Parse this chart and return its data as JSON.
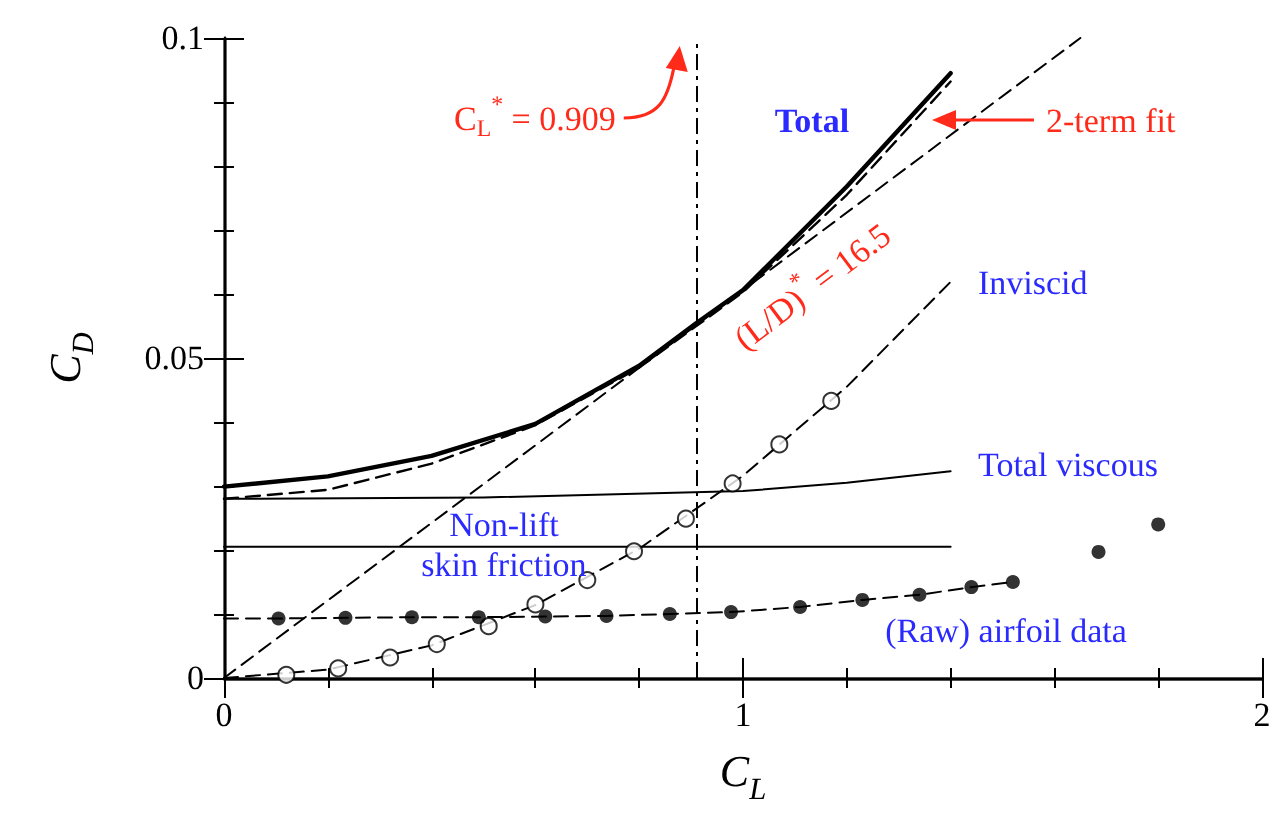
{
  "chart_data": {
    "type": "line",
    "xlabel": "C$_{L}$",
    "ylabel": "C$_{D}$",
    "xlim": [
      0,
      2
    ],
    "ylim": [
      0,
      0.1
    ],
    "xticks": [
      0,
      {
        "value": 0.2,
        "label": null
      },
      {
        "value": 0.4,
        "label": null
      },
      {
        "value": 0.6,
        "label": null
      },
      {
        "value": 0.8,
        "label": null
      },
      1,
      {
        "value": 1.2,
        "label": null
      },
      {
        "value": 1.4,
        "label": null
      },
      {
        "value": 1.6,
        "label": null
      },
      {
        "value": 1.8,
        "label": null
      },
      2
    ],
    "yticks": [
      0,
      {
        "value": 0.01,
        "label": null
      },
      {
        "value": 0.02,
        "label": null
      },
      {
        "value": 0.03,
        "label": null
      },
      {
        "value": 0.04,
        "label": null
      },
      0.05,
      {
        "value": 0.06,
        "label": null
      },
      {
        "value": 0.07,
        "label": null
      },
      {
        "value": 0.08,
        "label": null
      },
      {
        "value": 0.09,
        "label": null
      },
      0.1
    ],
    "grid": false,
    "series": [
      {
        "name": "Total",
        "color": "#000000",
        "line_style": "solid",
        "x": [
          0,
          0.2,
          0.4,
          0.6,
          0.8,
          0.909,
          1.0,
          1.2,
          1.4
        ],
        "values": [
          0.0299,
          0.0315,
          0.0347,
          0.0397,
          0.0488,
          0.0554,
          0.0606,
          0.0768,
          0.0945
        ]
      },
      {
        "name": "2-term fit",
        "color": "#000000",
        "line_style": "dashed",
        "x": [
          0,
          0.2,
          0.4,
          0.6,
          0.8,
          1.0,
          1.2,
          1.4
        ],
        "values": [
          0.028,
          0.0294,
          0.0335,
          0.0395,
          0.0485,
          0.0603,
          0.0755,
          0.0932
        ]
      },
      {
        "name": "(L/D)$^{*}$ = 16.5",
        "color": "#000000",
        "line_style": "dashed",
        "x": [
          0,
          1.65
        ],
        "values": [
          0,
          0.1
        ]
      },
      {
        "name": "Inviscid",
        "color": "#000000",
        "line_style": "dashed",
        "x": [
          0,
          0.2,
          0.4,
          0.6,
          0.8,
          1.0,
          1.2,
          1.4
        ],
        "values": [
          0,
          0.0013,
          0.0051,
          0.0114,
          0.0202,
          0.0316,
          0.0455,
          0.0619
        ]
      },
      {
        "type": "scatter",
        "color": "#000000",
        "marker": "circle",
        "x": [
          0.12,
          0.22,
          0.32,
          0.41,
          0.51,
          0.6,
          0.7,
          0.79,
          0.89,
          0.98,
          1.07,
          1.17
        ],
        "values": [
          0.0005,
          0.0015,
          0.0032,
          0.0053,
          0.0081,
          0.0115,
          0.0153,
          0.0198,
          0.0249,
          0.0304,
          0.0365,
          0.0433
        ]
      },
      {
        "name": "Total viscous",
        "color": "#000000",
        "line_style": "solid",
        "x": [
          0,
          0.5,
          1.0,
          1.2,
          1.4
        ],
        "values": [
          0.028,
          0.0282,
          0.0292,
          0.0305,
          0.0323
        ]
      },
      {
        "name": "Non-lift\nskin friction",
        "color": "#000000",
        "line_style": "solid",
        "x": [
          0,
          1.4
        ],
        "values": [
          0.0205,
          0.0205
        ]
      },
      {
        "name": "(Raw) airfoil data",
        "color": "#000000",
        "line_style": "dashed",
        "x": [
          0,
          0.105,
          0.234,
          0.362,
          0.491,
          0.619,
          0.737,
          0.859,
          0.977,
          1.11,
          1.23,
          1.34,
          1.44,
          1.52
        ],
        "values": [
          0.0093,
          0.0093,
          0.0094,
          0.0095,
          0.0095,
          0.0096,
          0.0097,
          0.01,
          0.0103,
          0.0111,
          0.0122,
          0.013,
          0.0142,
          0.015
        ]
      },
      {
        "type": "scatter",
        "color": "#000000",
        "marker": "circle",
        "x": [
          0.105,
          0.234,
          0.362,
          0.491,
          0.619,
          0.737,
          0.859,
          0.977,
          1.11,
          1.23,
          1.34,
          1.44,
          1.52,
          1.685,
          1.8
        ],
        "values": [
          0.0093,
          0.0094,
          0.0095,
          0.0095,
          0.0096,
          0.0097,
          0.01,
          0.0103,
          0.0111,
          0.0122,
          0.013,
          0.0142,
          0.015,
          0.0197,
          0.024
        ]
      }
    ],
    "ref_lines": [
      {
        "axis": "x",
        "value": 0.909,
        "label": "C$_{L}$$^{*}$ = 0.909",
        "color": "#000000",
        "line_style": "dashed"
      }
    ]
  }
}
